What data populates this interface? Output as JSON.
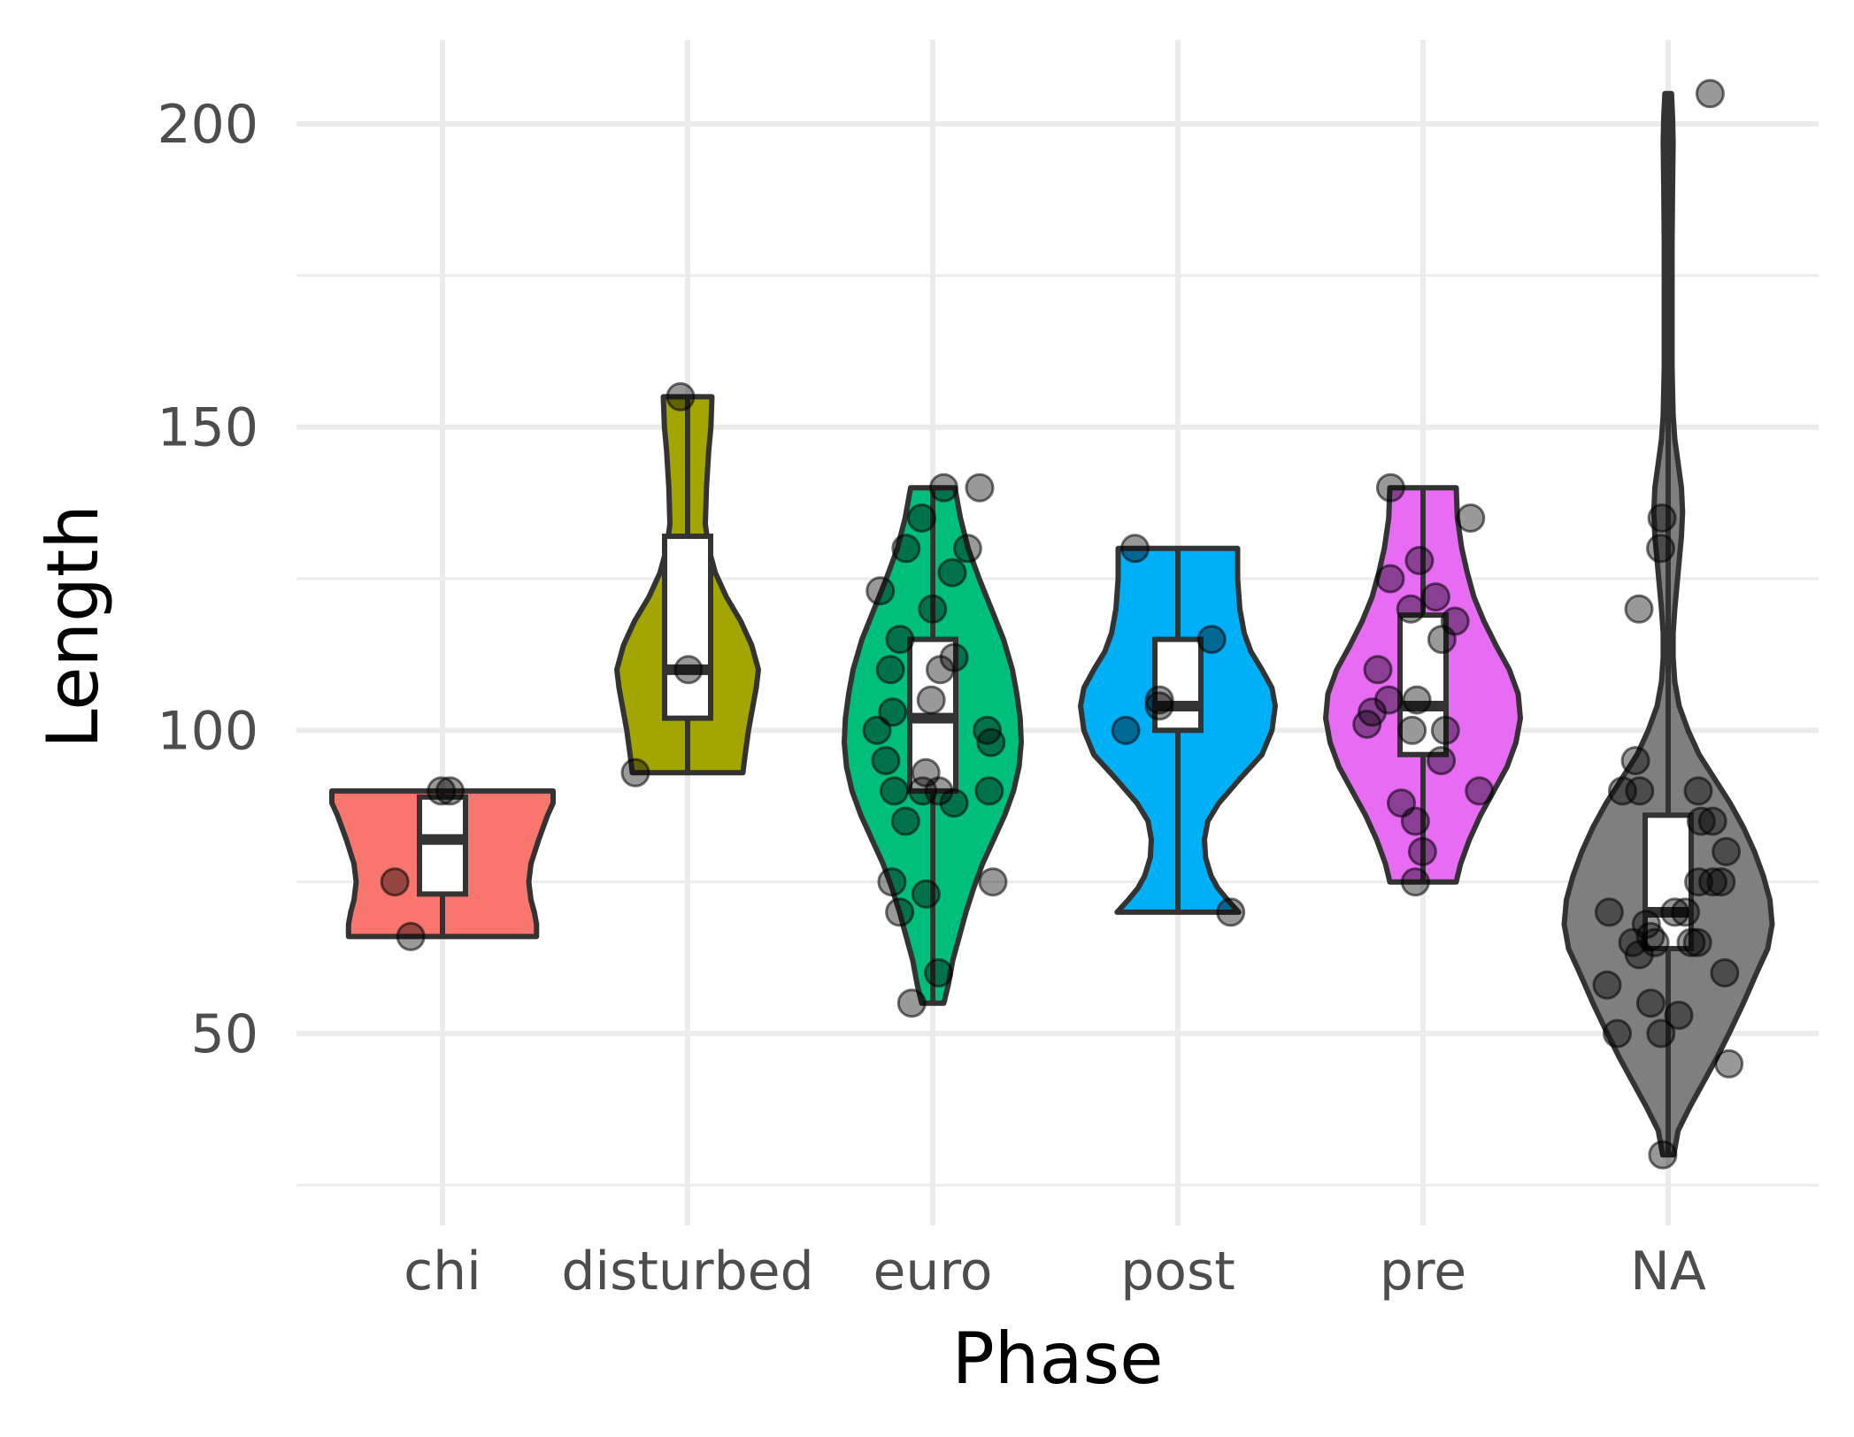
{
  "chart_data": {
    "type": "violin",
    "xlabel": "Phase",
    "ylabel": "Length",
    "categories": [
      "chi",
      "disturbed",
      "euro",
      "post",
      "pre",
      "NA"
    ],
    "yticks": [
      50,
      100,
      150,
      200
    ],
    "ylim": [
      25,
      214
    ],
    "grid": true,
    "legend": "none",
    "colors": {
      "chi": "#F8766D",
      "disturbed": "#A3A500",
      "euro": "#00BF7D",
      "post": "#00B0F6",
      "pre": "#E76BF3",
      "NA": "#7F7F7F"
    },
    "groups": [
      {
        "name": "chi",
        "min": 66,
        "max": 90,
        "q1": 73,
        "median": 82,
        "q3": 89,
        "points": [
          90,
          90,
          75,
          66
        ],
        "density": [
          [
            66,
            0.85
          ],
          [
            68,
            0.85
          ],
          [
            70,
            0.83
          ],
          [
            72,
            0.8
          ],
          [
            75,
            0.78
          ],
          [
            78,
            0.8
          ],
          [
            82,
            0.87
          ],
          [
            86,
            0.95
          ],
          [
            88,
            1.0
          ],
          [
            90,
            1.0
          ]
        ]
      },
      {
        "name": "disturbed",
        "min": 93,
        "max": 155,
        "q1": 102,
        "median": 110,
        "q3": 132,
        "points": [
          155,
          110,
          93
        ],
        "density": [
          [
            93,
            0.5
          ],
          [
            96,
            0.52
          ],
          [
            100,
            0.55
          ],
          [
            103,
            0.58
          ],
          [
            107,
            0.62
          ],
          [
            110,
            0.64
          ],
          [
            114,
            0.58
          ],
          [
            118,
            0.48
          ],
          [
            122,
            0.35
          ],
          [
            126,
            0.25
          ],
          [
            130,
            0.19
          ],
          [
            134,
            0.16
          ],
          [
            140,
            0.17
          ],
          [
            146,
            0.19
          ],
          [
            150,
            0.21
          ],
          [
            155,
            0.22
          ]
        ]
      },
      {
        "name": "euro",
        "min": 55,
        "max": 140,
        "q1": 90,
        "median": 102,
        "q3": 115,
        "points": [
          140,
          140,
          135,
          130,
          130,
          126,
          123,
          120,
          115,
          112,
          110,
          110,
          105,
          103,
          100,
          100,
          98,
          95,
          93,
          90,
          90,
          90,
          90,
          88,
          85,
          75,
          75,
          73,
          70,
          60,
          55
        ],
        "density": [
          [
            55,
            0.1
          ],
          [
            58,
            0.14
          ],
          [
            62,
            0.18
          ],
          [
            66,
            0.24
          ],
          [
            70,
            0.3
          ],
          [
            74,
            0.37
          ],
          [
            78,
            0.45
          ],
          [
            82,
            0.55
          ],
          [
            86,
            0.65
          ],
          [
            90,
            0.73
          ],
          [
            94,
            0.78
          ],
          [
            98,
            0.8
          ],
          [
            102,
            0.79
          ],
          [
            106,
            0.76
          ],
          [
            110,
            0.72
          ],
          [
            115,
            0.64
          ],
          [
            120,
            0.53
          ],
          [
            125,
            0.42
          ],
          [
            130,
            0.32
          ],
          [
            135,
            0.25
          ],
          [
            140,
            0.2
          ]
        ]
      },
      {
        "name": "post",
        "min": 70,
        "max": 130,
        "q1": 100,
        "median": 104,
        "q3": 115,
        "points": [
          130,
          115,
          105,
          104,
          100,
          70
        ],
        "density": [
          [
            70,
            0.55
          ],
          [
            72,
            0.45
          ],
          [
            74,
            0.36
          ],
          [
            76,
            0.3
          ],
          [
            79,
            0.25
          ],
          [
            82,
            0.24
          ],
          [
            85,
            0.27
          ],
          [
            88,
            0.37
          ],
          [
            92,
            0.56
          ],
          [
            96,
            0.76
          ],
          [
            100,
            0.85
          ],
          [
            104,
            0.88
          ],
          [
            107,
            0.85
          ],
          [
            110,
            0.76
          ],
          [
            113,
            0.66
          ],
          [
            116,
            0.6
          ],
          [
            120,
            0.56
          ],
          [
            125,
            0.54
          ],
          [
            130,
            0.54
          ]
        ]
      },
      {
        "name": "pre",
        "min": 75,
        "max": 140,
        "q1": 96,
        "median": 104,
        "q3": 119,
        "points": [
          140,
          135,
          128,
          125,
          122,
          120,
          118,
          115,
          110,
          105,
          105,
          103,
          101,
          100,
          100,
          95,
          90,
          88,
          85,
          80,
          75
        ],
        "density": [
          [
            75,
            0.3
          ],
          [
            78,
            0.34
          ],
          [
            82,
            0.42
          ],
          [
            86,
            0.52
          ],
          [
            90,
            0.64
          ],
          [
            94,
            0.76
          ],
          [
            98,
            0.84
          ],
          [
            102,
            0.88
          ],
          [
            106,
            0.86
          ],
          [
            110,
            0.78
          ],
          [
            114,
            0.66
          ],
          [
            118,
            0.55
          ],
          [
            122,
            0.46
          ],
          [
            126,
            0.4
          ],
          [
            130,
            0.35
          ],
          [
            135,
            0.31
          ],
          [
            140,
            0.3
          ]
        ]
      },
      {
        "name": "NA",
        "min": 30,
        "max": 205,
        "q1": 64,
        "median": 70,
        "q3": 86,
        "points": [
          205,
          135,
          130,
          120,
          95,
          90,
          90,
          90,
          85,
          85,
          80,
          75,
          75,
          75,
          70,
          70,
          70,
          68,
          66,
          65,
          65,
          65,
          65,
          63,
          60,
          58,
          55,
          53,
          50,
          50,
          45,
          30
        ],
        "density": [
          [
            30,
            0.05
          ],
          [
            34,
            0.09
          ],
          [
            38,
            0.2
          ],
          [
            42,
            0.32
          ],
          [
            46,
            0.44
          ],
          [
            50,
            0.55
          ],
          [
            55,
            0.68
          ],
          [
            60,
            0.8
          ],
          [
            64,
            0.9
          ],
          [
            68,
            0.94
          ],
          [
            72,
            0.92
          ],
          [
            76,
            0.86
          ],
          [
            80,
            0.78
          ],
          [
            84,
            0.68
          ],
          [
            88,
            0.56
          ],
          [
            92,
            0.42
          ],
          [
            96,
            0.28
          ],
          [
            100,
            0.18
          ],
          [
            104,
            0.1
          ],
          [
            108,
            0.06
          ],
          [
            112,
            0.045
          ],
          [
            116,
            0.045
          ],
          [
            120,
            0.06
          ],
          [
            124,
            0.08
          ],
          [
            128,
            0.1
          ],
          [
            132,
            0.12
          ],
          [
            136,
            0.13
          ],
          [
            140,
            0.12
          ],
          [
            144,
            0.09
          ],
          [
            148,
            0.06
          ],
          [
            152,
            0.045
          ],
          [
            160,
            0.035
          ],
          [
            170,
            0.035
          ],
          [
            180,
            0.035
          ],
          [
            190,
            0.04
          ],
          [
            197,
            0.045
          ],
          [
            201,
            0.04
          ],
          [
            205,
            0.03
          ]
        ]
      }
    ]
  }
}
